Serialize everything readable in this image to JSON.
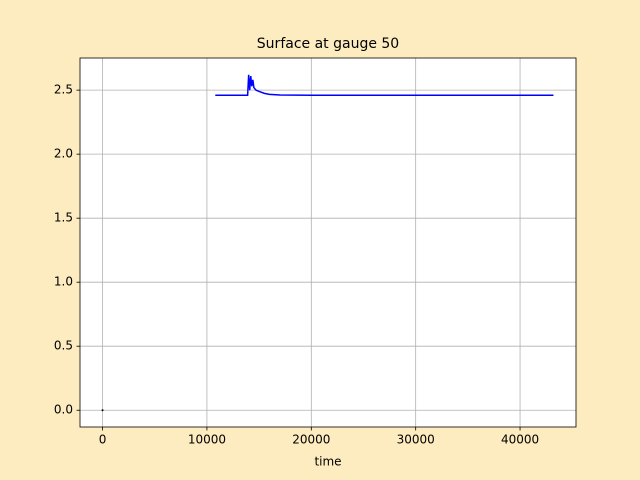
{
  "chart_data": {
    "type": "line",
    "title": "Surface at gauge 50",
    "xlabel": "time",
    "xlim": [
      -2160,
      45360
    ],
    "ylim": [
      -0.131,
      2.751
    ],
    "xticks": [
      0,
      10000,
      20000,
      30000,
      40000
    ],
    "yticks": [
      {
        "value": 0,
        "label": "0.0"
      },
      0.5,
      {
        "value": 1,
        "label": "1.0"
      },
      1.5,
      {
        "value": 2,
        "label": "2.0"
      },
      2.5
    ],
    "grid": true,
    "series": [
      {
        "color": "#000000",
        "x": [
          0
        ],
        "values": [
          0
        ]
      },
      {
        "color": "#0000ff",
        "x": [
          10800,
          13900,
          14000,
          14100,
          14200,
          14300,
          14400,
          14500,
          14700,
          15000,
          15500,
          16000,
          17000,
          20000,
          43200
        ],
        "values": [
          2.46,
          2.46,
          2.62,
          2.5,
          2.61,
          2.53,
          2.58,
          2.52,
          2.5,
          2.49,
          2.475,
          2.467,
          2.462,
          2.46,
          2.46
        ]
      }
    ]
  }
}
